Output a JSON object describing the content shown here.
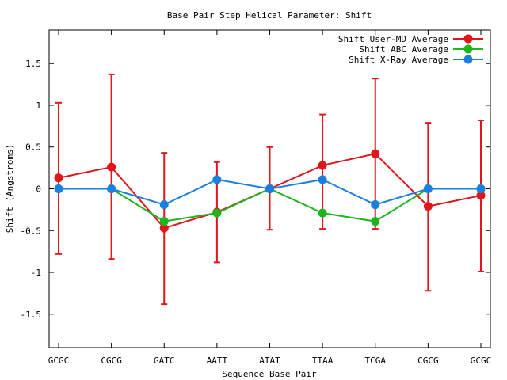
{
  "chart_data": {
    "type": "line",
    "title": "Base Pair Step Helical Parameter: Shift",
    "xlabel": "Sequence Base Pair",
    "ylabel": "Shift (Angstroms)",
    "categories": [
      "GCGC",
      "CGCG",
      "GATC",
      "AATT",
      "ATAT",
      "TTAA",
      "TCGA",
      "CGCG",
      "GCGC"
    ],
    "ylim": [
      -1.9,
      1.9
    ],
    "yticks": [
      -1.5,
      -1,
      -0.5,
      0,
      0.5,
      1,
      1.5
    ],
    "ytick_labels": [
      "-1.5",
      "-1",
      "-0.5",
      "0",
      "0.5",
      "1",
      "1.5"
    ],
    "grid": false,
    "legend_position": "top-right",
    "series": [
      {
        "name": "Shift User-MD Average",
        "color": "#e0161b",
        "values": [
          0.13,
          0.26,
          -0.47,
          -0.28,
          0.0,
          0.28,
          0.42,
          -0.21,
          -0.08
        ],
        "error_low": [
          -0.78,
          -0.84,
          -1.38,
          -0.88,
          -0.49,
          -0.48,
          -0.48,
          -1.22,
          -0.99
        ],
        "error_high": [
          1.03,
          1.37,
          0.43,
          0.32,
          0.5,
          0.89,
          1.32,
          0.79,
          0.82
        ]
      },
      {
        "name": "Shift ABC Average",
        "color": "#1cb51c",
        "values": [
          0.0,
          0.0,
          -0.39,
          -0.29,
          0.0,
          -0.29,
          -0.39,
          0.0,
          0.0
        ]
      },
      {
        "name": "Shift X-Ray Average",
        "color": "#1a7fe0",
        "values": [
          0.0,
          0.0,
          -0.19,
          0.11,
          0.0,
          0.11,
          -0.19,
          0.0,
          0.0
        ]
      }
    ]
  }
}
